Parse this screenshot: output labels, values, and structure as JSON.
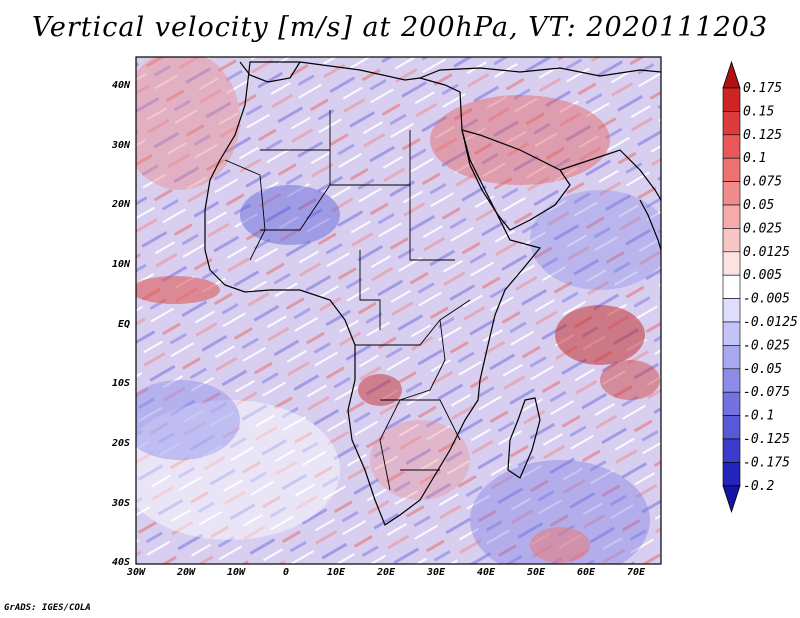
{
  "title": "Vertical velocity [m/s] at 200hPa, VT: 2020111203",
  "credit": "GrADS: IGES/COLA",
  "axes": {
    "lon_labels": [
      "30W",
      "20W",
      "10W",
      "0",
      "10E",
      "20E",
      "30E",
      "40E",
      "50E",
      "60E",
      "70E"
    ],
    "lat_labels": [
      "40N",
      "30N",
      "20N",
      "10N",
      "EQ",
      "10S",
      "20S",
      "30S",
      "40S"
    ],
    "lon_range": [
      -30,
      75
    ],
    "lat_range": [
      -40,
      45
    ]
  },
  "colorbar": {
    "labels": [
      "0.175",
      "0.15",
      "0.125",
      "0.1",
      "0.075",
      "0.05",
      "0.025",
      "0.0125",
      "0.005",
      "-0.005",
      "-0.0125",
      "-0.025",
      "-0.05",
      "-0.075",
      "-0.1",
      "-0.125",
      "-0.175",
      "-0.2"
    ],
    "colors": [
      "#b41010",
      "#cd2525",
      "#dc3c3c",
      "#e85858",
      "#ee7272",
      "#f28c8c",
      "#f6aaaa",
      "#f9c6c6",
      "#fce2e2",
      "#ffffff",
      "#dedeff",
      "#c4c4f8",
      "#a8a8f0",
      "#8c8ce8",
      "#7272e0",
      "#5858d8",
      "#3c3ccc",
      "#2424bc",
      "#1414a8"
    ]
  },
  "colors": {
    "background_field": "#ecd8ea",
    "blue_shade": "#8f8fe6",
    "red_shade": "#ea7878",
    "coast": "#000000"
  }
}
